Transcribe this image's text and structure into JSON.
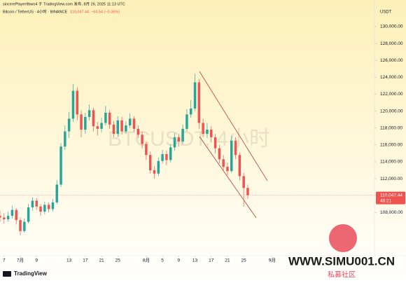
{
  "chart_data": {
    "type": "candlestick",
    "header": "sincerePlayer9bwo4 于 TradingView.com 发布, 8月 26, 2025 11:13 UTC",
    "symbol": "Bitcoin / TetherUS · 4小时 · BINANCE",
    "change": "−64.54 (−0.06%)",
    "currency": "USDT",
    "watermark": "BTCUSDT, 4小时",
    "logo": "TradingView",
    "site_watermark": "WWW.SIMU001.CN",
    "site_watermark_sub": "私募社区",
    "last_price": {
      "value": 110047.44,
      "label": "110,047.44"
    },
    "countdown": "48:21",
    "up_color": "#26a69a",
    "down_color": "#ef5350",
    "x": [
      0,
      1,
      2,
      3,
      4,
      5,
      6,
      7,
      8,
      9,
      10,
      11,
      12,
      13,
      14,
      15,
      16,
      17,
      18,
      19,
      20,
      21,
      22,
      23,
      24,
      25,
      26,
      27,
      28,
      29,
      30,
      31,
      32,
      33,
      34,
      35,
      36,
      37,
      38,
      39,
      40,
      41,
      42,
      43,
      44,
      45,
      46,
      47,
      48,
      49,
      50,
      51,
      52,
      53,
      54,
      55,
      56,
      57,
      58,
      59,
      60,
      61
    ],
    "open": [
      107600,
      107400,
      107200,
      107600,
      108300,
      107100,
      105800,
      106900,
      108600,
      109400,
      108700,
      108100,
      108900,
      108400,
      109200,
      111300,
      115800,
      117600,
      119100,
      122400,
      119600,
      117800,
      119300,
      120100,
      118200,
      117900,
      118600,
      119800,
      118400,
      117300,
      118900,
      117600,
      118300,
      119100,
      117900,
      117200,
      116100,
      114800,
      113000,
      112600,
      114100,
      114900,
      114200,
      115700,
      116900,
      116400,
      117900,
      119600,
      120300,
      123400,
      118600,
      117300,
      117800,
      116900,
      115600,
      114300,
      113400,
      112900,
      116500,
      114800,
      112300,
      110900
    ],
    "high": [
      108200,
      107900,
      108100,
      108800,
      108500,
      107400,
      107300,
      109000,
      109800,
      109700,
      109000,
      109300,
      109200,
      109600,
      111800,
      116200,
      118300,
      119900,
      123200,
      122800,
      120100,
      119800,
      120800,
      120400,
      118700,
      119200,
      120600,
      120100,
      118800,
      119400,
      119300,
      118800,
      119700,
      119400,
      118300,
      117600,
      116400,
      115200,
      113500,
      114500,
      115400,
      115300,
      116100,
      117400,
      117300,
      118400,
      120200,
      121300,
      124400,
      123800,
      119100,
      118600,
      118200,
      117300,
      116000,
      114800,
      113900,
      117100,
      116900,
      115100,
      112700,
      111300
    ],
    "low": [
      106900,
      106700,
      106900,
      107300,
      106600,
      105300,
      105600,
      106700,
      108200,
      108300,
      107600,
      107800,
      108000,
      108100,
      109000,
      111000,
      115400,
      116800,
      118700,
      118900,
      116900,
      117300,
      118900,
      117600,
      117100,
      117500,
      118300,
      117900,
      116900,
      117000,
      117200,
      117300,
      118000,
      117500,
      116800,
      115600,
      114200,
      112600,
      112000,
      112300,
      113800,
      113600,
      113900,
      115300,
      115800,
      116100,
      117600,
      119200,
      120000,
      117900,
      116900,
      116800,
      116300,
      115000,
      113800,
      112900,
      112400,
      112700,
      114300,
      111800,
      108700,
      109600
    ],
    "close": [
      107400,
      107200,
      107600,
      108300,
      107100,
      105800,
      106900,
      108600,
      109400,
      108700,
      108100,
      108900,
      108400,
      109200,
      111300,
      115800,
      117600,
      119100,
      122400,
      119600,
      117800,
      119300,
      120100,
      118200,
      117900,
      118600,
      119800,
      118400,
      117300,
      118900,
      117600,
      118300,
      119100,
      117900,
      117200,
      116100,
      114800,
      113000,
      112600,
      114100,
      114900,
      114200,
      115700,
      116900,
      116400,
      117900,
      119600,
      120300,
      123400,
      118600,
      117300,
      117800,
      116900,
      115600,
      114300,
      113400,
      112900,
      116500,
      114800,
      112300,
      110900,
      110047.44
    ],
    "xlim": [
      0,
      92.2
    ],
    "xticks": [
      {
        "value": 1,
        "label": "7"
      },
      {
        "value": 5,
        "label": "7月"
      },
      {
        "value": 9,
        "label": "9"
      },
      {
        "value": 17,
        "label": "13"
      },
      {
        "value": 21,
        "label": "17"
      },
      {
        "value": 25,
        "label": "21"
      },
      {
        "value": 29,
        "label": "25"
      },
      {
        "value": 36,
        "label": "8月"
      },
      {
        "value": 40,
        "label": "5"
      },
      {
        "value": 44,
        "label": "9"
      },
      {
        "value": 48,
        "label": "13"
      },
      {
        "value": 52,
        "label": "17"
      },
      {
        "value": 56,
        "label": "21"
      },
      {
        "value": 60,
        "label": "25"
      },
      {
        "value": 67,
        "label": "9月"
      }
    ],
    "ylim": [
      103300,
      131900
    ],
    "yticks": [
      {
        "value": 108000,
        "label": "108,000.00"
      },
      {
        "value": 110000,
        "label": "110,000.00"
      },
      {
        "value": 112000,
        "label": "112,000.00"
      },
      {
        "value": 114000,
        "label": "114,000.00"
      },
      {
        "value": 116000,
        "label": "116,000.00"
      },
      {
        "value": 118000,
        "label": "118,000.00"
      },
      {
        "value": 120000,
        "label": "120,000.00"
      },
      {
        "value": 122000,
        "label": "122,000.00"
      },
      {
        "value": 124000,
        "label": "124,000.00"
      },
      {
        "value": 126000,
        "label": "126,000.00"
      },
      {
        "value": 128000,
        "label": "128,000.00"
      },
      {
        "value": 130000,
        "label": "130,000.00"
      }
    ]
  }
}
